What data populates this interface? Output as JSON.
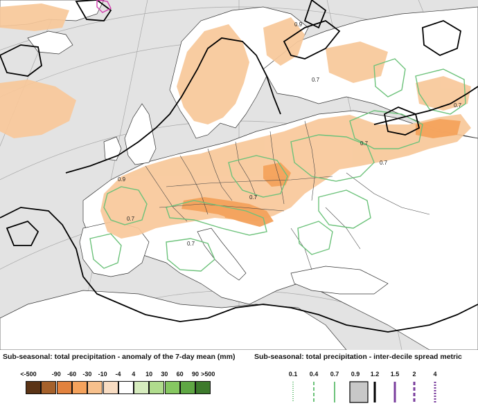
{
  "legend_left": {
    "title": "Sub-seasonal: total precipitation - anomaly of the 7-day mean (mm)",
    "labels": [
      "<-500",
      "-90",
      "-60",
      "-30",
      "-10",
      "-4",
      "4",
      "10",
      "30",
      "60",
      "90",
      ">500"
    ],
    "colors": [
      "#5b3416",
      "#a5612b",
      "#e2823e",
      "#f4a25c",
      "#f7c08c",
      "#f8dcc2",
      "#ffffff",
      "#d6ecbe",
      "#b0dc8d",
      "#86c761",
      "#5fa744",
      "#3d7a2c"
    ]
  },
  "legend_right": {
    "title": "Sub-seasonal: total precipitation - inter-decile spread metric",
    "labels": [
      "0.1",
      "0.4",
      "0.7",
      "0.9",
      "1.2",
      "1.5",
      "2",
      "4"
    ],
    "styles": [
      {
        "color": "#6cc27a",
        "dash": "1,2"
      },
      {
        "color": "#6cc27a",
        "dash": "5,3"
      },
      {
        "color": "#6cc27a",
        "dash": ""
      },
      {
        "color": "#c8c8c8",
        "dash": "box"
      },
      {
        "color": "#000000",
        "dash": ""
      },
      {
        "color": "#7a3e9d",
        "dash": ""
      },
      {
        "color": "#7a3e9d",
        "dash": "5,3"
      },
      {
        "color": "#7a3e9d",
        "dash": "2,2"
      }
    ]
  },
  "map": {
    "contour_labels": [
      "0.7",
      "0.7",
      "0.7",
      "0.7",
      "0.7",
      "0.7",
      "0.7",
      "0.9",
      "0.9"
    ],
    "colors": {
      "land": "#ffffff",
      "sea": "#e3e3e3",
      "dry_anomaly": "#f8c89a",
      "dry_anomaly_strong": "#f4a25c",
      "spread_07": "#6cc27a",
      "spread_09": "#000000",
      "spread_15": "#d33fb0",
      "border": "#333333",
      "graticule": "#9a9a9a"
    }
  }
}
